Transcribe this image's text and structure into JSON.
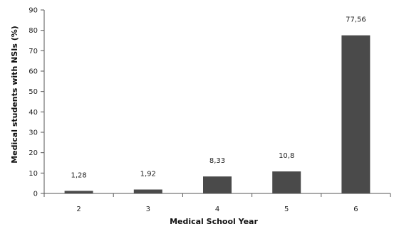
{
  "chart_data": {
    "type": "bar",
    "title": "",
    "xlabel": "Medical School Year",
    "ylabel": "Medical students with NSIs (%)",
    "categories": [
      "2",
      "3",
      "4",
      "5",
      "6"
    ],
    "values": [
      1.28,
      1.92,
      8.33,
      10.8,
      77.56
    ],
    "value_labels": [
      "1,28",
      "1,92",
      "8,33",
      "10,8",
      "77,56"
    ],
    "ylim": [
      0,
      90
    ],
    "yticks": [
      0,
      10,
      20,
      30,
      40,
      50,
      60,
      70,
      80,
      90
    ],
    "grid": false,
    "legend": "none",
    "bar_color": "#4a4a4a"
  }
}
